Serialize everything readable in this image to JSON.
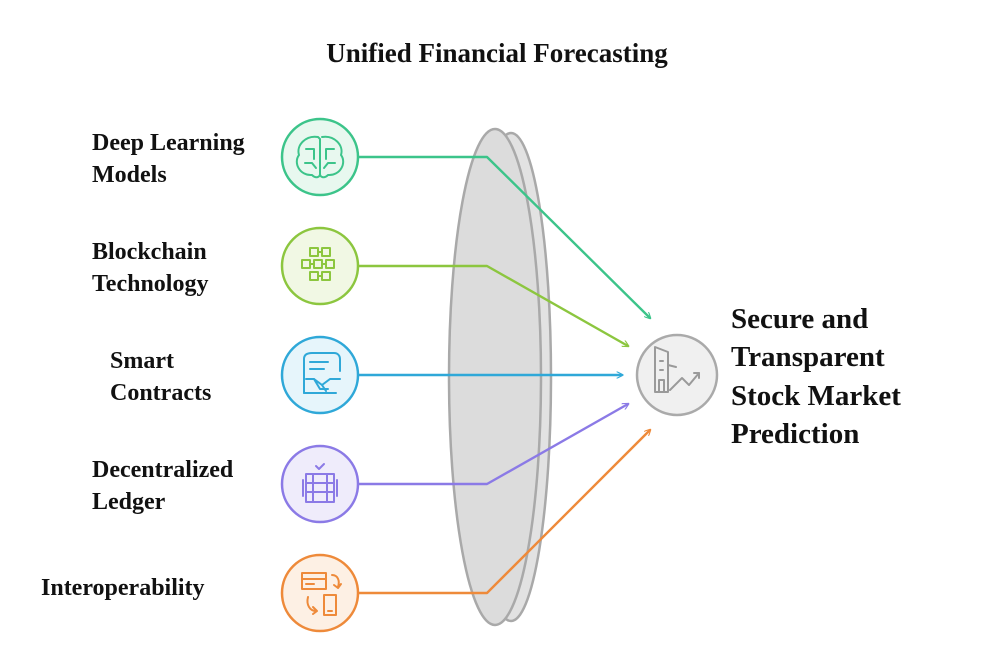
{
  "title": "Unified Financial Forecasting",
  "inputs": [
    {
      "id": "deep-learning",
      "label_lines": [
        "Deep Learning",
        "Models"
      ],
      "color": "#3cc48a",
      "fill": "#e8f8ef",
      "icon": "brain-circuit-icon"
    },
    {
      "id": "blockchain",
      "label_lines": [
        "Blockchain",
        "Technology"
      ],
      "color": "#8cc63f",
      "fill": "#f1f8e4",
      "icon": "block-grid-icon"
    },
    {
      "id": "smart-contracts",
      "label_lines": [
        "Smart",
        "Contracts"
      ],
      "color": "#2fa8d8",
      "fill": "#e6f5fb",
      "icon": "contract-handshake-icon"
    },
    {
      "id": "decentralized-ledger",
      "label_lines": [
        "Decentralized",
        "Ledger"
      ],
      "color": "#8b7ae6",
      "fill": "#efecfb",
      "icon": "ledger-stack-icon"
    },
    {
      "id": "interoperability",
      "label_lines": [
        "Interoperability"
      ],
      "color": "#ee8a3a",
      "fill": "#fdf0e4",
      "icon": "exchange-devices-icon"
    }
  ],
  "output": {
    "label_lines": [
      "Secure and",
      "Transparent",
      "Stock Market",
      "Prediction"
    ],
    "color": "#aaaaaa",
    "fill": "#f0f0f0",
    "icon": "building-trend-icon"
  }
}
